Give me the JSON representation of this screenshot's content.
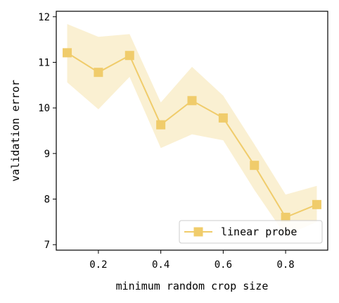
{
  "chart_data": {
    "type": "line",
    "xlabel": "minimum random crop size",
    "ylabel": "validation error",
    "xlim": [
      0.065,
      0.935
    ],
    "ylim": [
      6.88,
      12.12
    ],
    "xticks": [
      0.2,
      0.4,
      0.6,
      0.8
    ],
    "xtick_labels": [
      "0.2",
      "0.4",
      "0.6",
      "0.8"
    ],
    "yticks": [
      7,
      8,
      9,
      10,
      11,
      12
    ],
    "ytick_labels": [
      "7",
      "8",
      "9",
      "10",
      "11",
      "12"
    ],
    "grid": false,
    "legend_position": "bottom-right",
    "series": [
      {
        "name": "linear probe",
        "color": "#f0cc6b",
        "marker": "square",
        "x": [
          0.1,
          0.2,
          0.3,
          0.4,
          0.5,
          0.6,
          0.7,
          0.8,
          0.9
        ],
        "y": [
          11.21,
          10.78,
          11.15,
          9.63,
          10.16,
          9.78,
          8.74,
          7.6,
          7.88
        ],
        "lower": [
          10.56,
          9.97,
          10.68,
          9.12,
          9.42,
          9.29,
          8.2,
          7.2,
          7.5
        ],
        "upper": [
          11.84,
          11.56,
          11.62,
          10.12,
          10.9,
          10.27,
          9.2,
          8.1,
          8.29
        ]
      }
    ]
  }
}
